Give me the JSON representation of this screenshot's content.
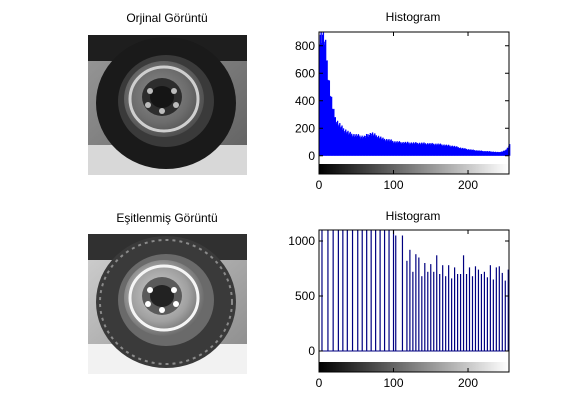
{
  "panels": {
    "original_title": "Orjinal Görüntü",
    "equalized_title": "Eşitlenmiş Görüntü",
    "hist1_title": "Histogram",
    "hist2_title": "Histogram"
  },
  "chart_data": [
    {
      "type": "bar",
      "title": "Histogram",
      "xlabel": "",
      "ylabel": "",
      "xlim": [
        0,
        255
      ],
      "ylim": [
        -60,
        900
      ],
      "xticks": [
        0,
        100,
        200
      ],
      "yticks": [
        0,
        200,
        400,
        600,
        800
      ],
      "bar_color": "#0000ff",
      "colorbar": "grayscale 0-255",
      "x": [
        0,
        3,
        6,
        9,
        12,
        15,
        18,
        21,
        24,
        27,
        30,
        35,
        40,
        45,
        50,
        55,
        60,
        65,
        70,
        75,
        80,
        85,
        90,
        95,
        100,
        110,
        120,
        130,
        140,
        150,
        160,
        170,
        180,
        190,
        200,
        210,
        220,
        230,
        240,
        245,
        250,
        255
      ],
      "values": [
        900,
        890,
        860,
        720,
        560,
        430,
        330,
        270,
        240,
        220,
        200,
        180,
        160,
        150,
        145,
        140,
        135,
        150,
        160,
        145,
        135,
        120,
        115,
        110,
        100,
        95,
        92,
        90,
        88,
        85,
        82,
        75,
        68,
        55,
        45,
        38,
        33,
        30,
        25,
        30,
        40,
        80
      ]
    },
    {
      "type": "bar",
      "title": "Histogram",
      "xlabel": "",
      "ylabel": "",
      "xlim": [
        0,
        255
      ],
      "ylim": [
        -100,
        1100
      ],
      "xticks": [
        0,
        100,
        200
      ],
      "yticks": [
        0,
        500,
        1000
      ],
      "bar_color": "#000080",
      "colorbar": "grayscale 0-255",
      "x": [
        4,
        12,
        19,
        26,
        32,
        38,
        45,
        52,
        58,
        64,
        70,
        76,
        82,
        88,
        94,
        100,
        103,
        112,
        118,
        122,
        126,
        130,
        134,
        138,
        142,
        146,
        150,
        154,
        158,
        162,
        166,
        170,
        174,
        178,
        182,
        186,
        190,
        194,
        198,
        202,
        206,
        210,
        214,
        218,
        222,
        226,
        230,
        234,
        238,
        242,
        246,
        250,
        254
      ],
      "values": [
        1100,
        1100,
        1100,
        1100,
        1100,
        1100,
        1100,
        1100,
        1100,
        1100,
        1100,
        1100,
        1100,
        1100,
        1100,
        1100,
        1050,
        1050,
        820,
        920,
        720,
        880,
        850,
        680,
        800,
        720,
        790,
        720,
        870,
        700,
        780,
        680,
        780,
        660,
        760,
        700,
        700,
        870,
        700,
        760,
        680,
        770,
        740,
        700,
        720,
        670,
        780,
        650,
        760,
        770,
        710,
        640,
        740
      ]
    }
  ]
}
